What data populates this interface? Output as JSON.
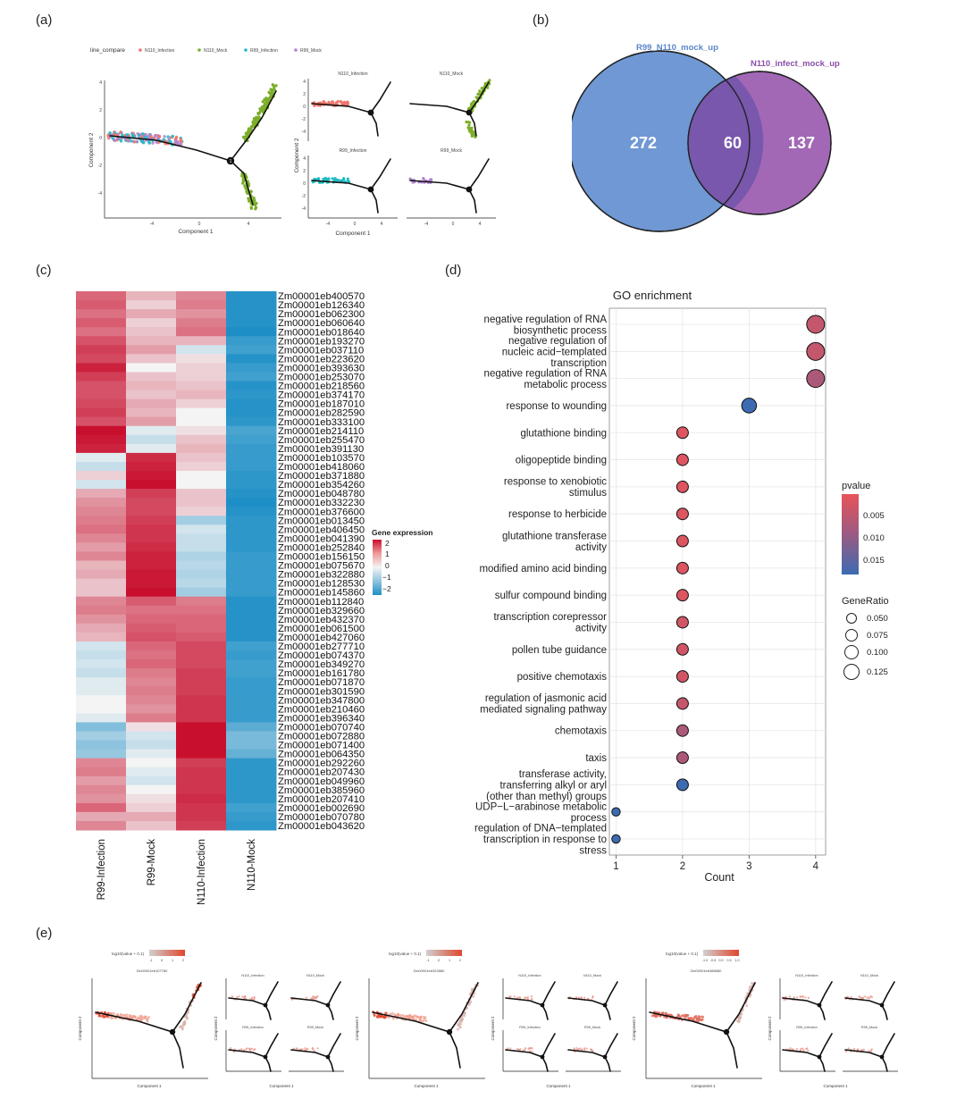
{
  "panel_labels": {
    "a": "(a)",
    "b": "(b)",
    "c": "(c)",
    "d": "(d)",
    "e": "(e)"
  },
  "panel_a": {
    "legend_title": "line_compare",
    "legend_items": [
      {
        "label": "N110_Infection",
        "color": "#f0756b"
      },
      {
        "label": "N110_Mock",
        "color": "#7cae2a"
      },
      {
        "label": "R99_Infection",
        "color": "#1fbcc4"
      },
      {
        "label": "R99_Mock",
        "color": "#b084d6"
      }
    ],
    "xlabel": "Component 1",
    "ylabel": "Component 2",
    "main_yticks": [
      "4",
      "2",
      "0",
      "-2",
      "-4"
    ],
    "main_xticks": [
      "-4",
      "0",
      "4"
    ],
    "facet_titles": [
      "N110_Infection",
      "N110_Mock",
      "R99_Infection",
      "R99_Mock"
    ],
    "facet_yticks": [
      "4",
      "2",
      "0",
      "-2",
      "-4"
    ],
    "facet_xticks": [
      "-4",
      "0",
      "4"
    ],
    "branch_label": "1"
  },
  "panel_b": {
    "set1_label": "R99_N110_mock_up",
    "set2_label": "N110_infect_mock_up",
    "only1": "272",
    "both": "60",
    "only2": "137",
    "set1_color": "#6f98d4",
    "set2_color": "#9a5bb0"
  },
  "panel_c": {
    "columns": [
      "R99-Infection",
      "R99-Mock",
      "N110-Infection",
      "N110-Mock"
    ],
    "legend_title": "Gene expression",
    "legend_ticks": [
      "2",
      "1",
      "0",
      "−1",
      "−2"
    ],
    "genes": [
      "Zm00001eb400570",
      "Zm00001eb126340",
      "Zm00001eb062300",
      "Zm00001eb060640",
      "Zm00001eb018640",
      "Zm00001eb193270",
      "Zm00001eb037110",
      "Zm00001eb223620",
      "Zm00001eb393630",
      "Zm00001eb253070",
      "Zm00001eb218560",
      "Zm00001eb374170",
      "Zm00001eb187010",
      "Zm00001eb282590",
      "Zm00001eb333100",
      "Zm00001eb214110",
      "Zm00001eb255470",
      "Zm00001eb391130",
      "Zm00001eb103570",
      "Zm00001eb418060",
      "Zm00001eb371880",
      "Zm00001eb354260",
      "Zm00001eb048780",
      "Zm00001eb332230",
      "Zm00001eb376600",
      "Zm00001eb013450",
      "Zm00001eb406450",
      "Zm00001eb041390",
      "Zm00001eb252840",
      "Zm00001eb156150",
      "Zm00001eb075670",
      "Zm00001eb322880",
      "Zm00001eb128530",
      "Zm00001eb145860",
      "Zm00001eb112840",
      "Zm00001eb329660",
      "Zm00001eb432370",
      "Zm00001eb061500",
      "Zm00001eb427060",
      "Zm00001eb277710",
      "Zm00001eb074370",
      "Zm00001eb349270",
      "Zm00001eb161780",
      "Zm00001eb071870",
      "Zm00001eb301590",
      "Zm00001eb347800",
      "Zm00001eb210460",
      "Zm00001eb396340",
      "Zm00001eb070740",
      "Zm00001eb072880",
      "Zm00001eb071400",
      "Zm00001eb064350",
      "Zm00001eb292260",
      "Zm00001eb207430",
      "Zm00001eb049960",
      "Zm00001eb385960",
      "Zm00001eb207410",
      "Zm00001eb002690",
      "Zm00001eb070780",
      "Zm00001eb043620"
    ],
    "values": [
      [
        1.1,
        0.4,
        0.8,
        -1.9
      ],
      [
        1.2,
        0.2,
        0.9,
        -1.9
      ],
      [
        1.0,
        0.5,
        0.7,
        -1.9
      ],
      [
        1.2,
        0.2,
        0.9,
        -1.9
      ],
      [
        1.0,
        0.3,
        1.0,
        -2.0
      ],
      [
        1.3,
        0.4,
        0.4,
        -1.7
      ],
      [
        1.5,
        0.6,
        -0.2,
        -1.6
      ],
      [
        1.4,
        0.3,
        0.1,
        -1.9
      ],
      [
        1.8,
        0.0,
        0.2,
        -1.7
      ],
      [
        1.5,
        0.3,
        0.2,
        -1.6
      ],
      [
        1.3,
        0.4,
        0.3,
        -1.9
      ],
      [
        1.3,
        0.3,
        0.4,
        -1.8
      ],
      [
        1.4,
        0.5,
        0.2,
        -1.9
      ],
      [
        1.5,
        0.4,
        0.0,
        -1.9
      ],
      [
        1.3,
        0.6,
        0.0,
        -1.8
      ],
      [
        2.0,
        -0.1,
        0.1,
        -1.5
      ],
      [
        1.9,
        -0.3,
        0.3,
        -1.6
      ],
      [
        1.8,
        -0.1,
        0.4,
        -1.7
      ],
      [
        -0.1,
        1.7,
        0.3,
        -1.7
      ],
      [
        -0.3,
        1.8,
        0.2,
        -1.7
      ],
      [
        0.2,
        1.9,
        0.0,
        -1.8
      ],
      [
        -0.2,
        2.0,
        0.0,
        -1.8
      ],
      [
        0.5,
        1.5,
        0.3,
        -1.9
      ],
      [
        0.7,
        1.4,
        0.3,
        -2.0
      ],
      [
        0.8,
        1.4,
        0.2,
        -1.9
      ],
      [
        0.9,
        1.5,
        -0.6,
        -1.8
      ],
      [
        1.0,
        1.6,
        -0.2,
        -1.8
      ],
      [
        0.8,
        1.6,
        -0.3,
        -1.8
      ],
      [
        0.6,
        1.7,
        -0.3,
        -1.8
      ],
      [
        0.8,
        1.8,
        -0.5,
        -1.7
      ],
      [
        0.4,
        1.8,
        -0.4,
        -1.7
      ],
      [
        0.5,
        1.9,
        -0.5,
        -1.7
      ],
      [
        0.3,
        1.9,
        -0.4,
        -1.7
      ],
      [
        0.3,
        2.0,
        -0.6,
        -1.7
      ],
      [
        0.8,
        1.2,
        0.9,
        -1.9
      ],
      [
        0.9,
        1.0,
        1.0,
        -1.9
      ],
      [
        0.7,
        1.1,
        1.1,
        -1.9
      ],
      [
        0.5,
        1.2,
        1.1,
        -1.9
      ],
      [
        0.4,
        1.3,
        1.2,
        -1.9
      ],
      [
        -0.2,
        1.1,
        1.4,
        -1.6
      ],
      [
        -0.3,
        1.0,
        1.4,
        -1.7
      ],
      [
        -0.2,
        1.1,
        1.4,
        -1.6
      ],
      [
        -0.3,
        0.9,
        1.5,
        -1.6
      ],
      [
        -0.1,
        0.8,
        1.5,
        -1.7
      ],
      [
        -0.1,
        0.9,
        1.5,
        -1.7
      ],
      [
        0.0,
        0.8,
        1.6,
        -1.7
      ],
      [
        0.0,
        0.7,
        1.6,
        -1.7
      ],
      [
        -0.1,
        0.9,
        1.6,
        -1.7
      ],
      [
        -0.9,
        0.1,
        2.0,
        -1.3
      ],
      [
        -0.6,
        -0.2,
        2.0,
        -1.0
      ],
      [
        -0.8,
        -0.3,
        2.1,
        -1.0
      ],
      [
        -0.7,
        -0.1,
        2.0,
        -1.2
      ],
      [
        0.8,
        0.0,
        1.5,
        -1.8
      ],
      [
        0.9,
        -0.1,
        1.6,
        -1.8
      ],
      [
        0.6,
        -0.2,
        1.6,
        -1.8
      ],
      [
        0.8,
        0.0,
        1.6,
        -1.8
      ],
      [
        0.7,
        0.1,
        1.7,
        -1.8
      ],
      [
        1.1,
        0.2,
        1.6,
        -1.6
      ],
      [
        0.5,
        0.5,
        1.6,
        -1.7
      ],
      [
        0.8,
        0.3,
        1.5,
        -1.8
      ]
    ]
  },
  "chart_data": {
    "type": "scatter",
    "title": "GO enrichment",
    "xlabel": "Count",
    "ylabel": "",
    "xlim": [
      0.9,
      4.15
    ],
    "xticks": [
      "1",
      "2",
      "3",
      "4"
    ],
    "legend_pvalue_title": "pvalue",
    "legend_pvalue_ticks": [
      "0.005",
      "0.010",
      "0.015"
    ],
    "legend_generatio_title": "GeneRatio",
    "legend_generatio_ticks": [
      "0.050",
      "0.075",
      "0.100",
      "0.125"
    ],
    "series": [
      {
        "term": "negative regulation of RNA\nbiosynthetic process",
        "count": 4,
        "pvalue": 0.006,
        "gene_ratio": 0.125
      },
      {
        "term": "negative regulation of\nnucleic acid−templated\ntranscription",
        "count": 4,
        "pvalue": 0.006,
        "gene_ratio": 0.125
      },
      {
        "term": "negative regulation of RNA\nmetabolic process",
        "count": 4,
        "pvalue": 0.008,
        "gene_ratio": 0.125
      },
      {
        "term": "response to wounding",
        "count": 3,
        "pvalue": 0.016,
        "gene_ratio": 0.094
      },
      {
        "term": "glutathione binding",
        "count": 2,
        "pvalue": 0.004,
        "gene_ratio": 0.0625
      },
      {
        "term": "oligopeptide binding",
        "count": 2,
        "pvalue": 0.004,
        "gene_ratio": 0.0625
      },
      {
        "term": "response to xenobiotic\nstimulus",
        "count": 2,
        "pvalue": 0.004,
        "gene_ratio": 0.0625
      },
      {
        "term": "response to herbicide",
        "count": 2,
        "pvalue": 0.004,
        "gene_ratio": 0.0625
      },
      {
        "term": "glutathione transferase\nactivity",
        "count": 2,
        "pvalue": 0.004,
        "gene_ratio": 0.0625
      },
      {
        "term": "modified amino acid binding",
        "count": 2,
        "pvalue": 0.004,
        "gene_ratio": 0.0625
      },
      {
        "term": "sulfur compound binding",
        "count": 2,
        "pvalue": 0.004,
        "gene_ratio": 0.0625
      },
      {
        "term": "transcription corepressor\nactivity",
        "count": 2,
        "pvalue": 0.005,
        "gene_ratio": 0.0625
      },
      {
        "term": "pollen tube guidance",
        "count": 2,
        "pvalue": 0.005,
        "gene_ratio": 0.0625
      },
      {
        "term": "positive chemotaxis",
        "count": 2,
        "pvalue": 0.005,
        "gene_ratio": 0.0625
      },
      {
        "term": "regulation of jasmonic acid\nmediated signaling pathway",
        "count": 2,
        "pvalue": 0.006,
        "gene_ratio": 0.0625
      },
      {
        "term": "chemotaxis",
        "count": 2,
        "pvalue": 0.008,
        "gene_ratio": 0.0625
      },
      {
        "term": "taxis",
        "count": 2,
        "pvalue": 0.008,
        "gene_ratio": 0.0625
      },
      {
        "term": "transferase activity,\ntransferring alkyl or aryl\n(other than methyl) groups",
        "count": 2,
        "pvalue": 0.016,
        "gene_ratio": 0.0625
      },
      {
        "term": "UDP−L−arabinose metabolic\nprocess",
        "count": 1,
        "pvalue": 0.016,
        "gene_ratio": 0.031
      },
      {
        "term": "regulation of DNA−templated\ntranscription in response to\nstress",
        "count": 1,
        "pvalue": 0.016,
        "gene_ratio": 0.031
      }
    ]
  },
  "panel_e": {
    "groups": [
      {
        "legend_title": "log10(value + 0.1)",
        "legend_ticks": [
          "-1",
          "0",
          "1",
          "2"
        ],
        "gene": "Zm00001eb107780"
      },
      {
        "legend_title": "log10(value + 0.1)",
        "legend_ticks": [
          "-1",
          "0",
          "1",
          "2"
        ],
        "gene": "Zm00001eb322880"
      },
      {
        "legend_title": "log10(value + 0.1)",
        "legend_ticks": [
          "-1.0",
          "-0.5",
          "0.0",
          "0.5",
          "1.0"
        ],
        "gene": "Zm00001eb386580"
      }
    ],
    "facet_titles": [
      "N110_Infection",
      "N110_Mock",
      "R99_Infection",
      "R99_Mock"
    ],
    "xlabel": "Component 1",
    "ylabel": "Component 2"
  }
}
